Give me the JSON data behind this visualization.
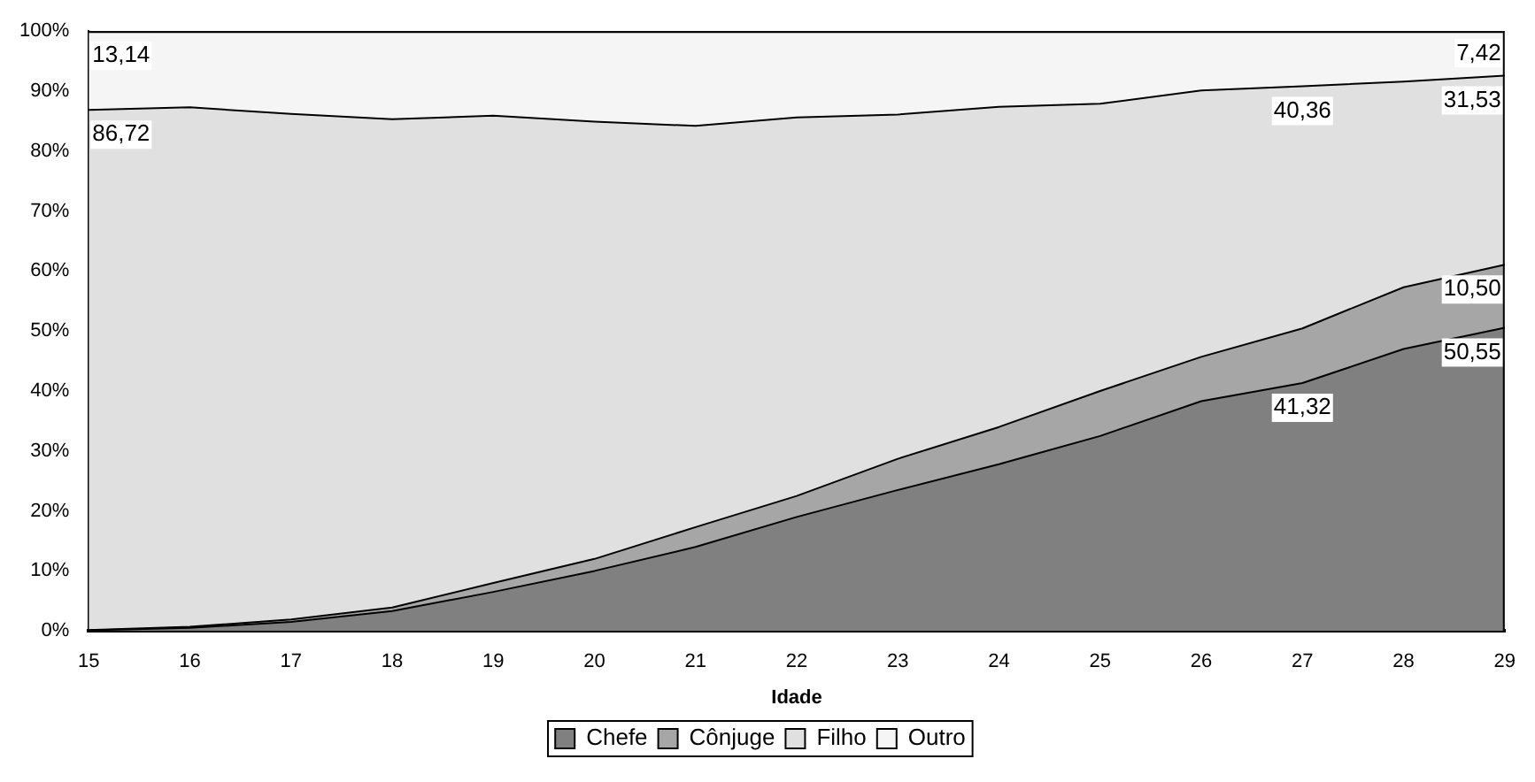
{
  "chart_data": {
    "type": "area",
    "stacked": true,
    "xlabel": "Idade",
    "categories": [
      "15",
      "16",
      "17",
      "18",
      "19",
      "20",
      "21",
      "22",
      "23",
      "24",
      "25",
      "26",
      "27",
      "28",
      "29"
    ],
    "ylim": [
      0,
      100
    ],
    "yticks": [
      {
        "value": 0,
        "label": "0%"
      },
      {
        "value": 10,
        "label": "10%"
      },
      {
        "value": 20,
        "label": "20%"
      },
      {
        "value": 30,
        "label": "30%"
      },
      {
        "value": 40,
        "label": "40%"
      },
      {
        "value": 50,
        "label": "50%"
      },
      {
        "value": 60,
        "label": "60%"
      },
      {
        "value": 70,
        "label": "70%"
      },
      {
        "value": 80,
        "label": "80%"
      },
      {
        "value": 90,
        "label": "90%"
      },
      {
        "value": 100,
        "label": "100%"
      }
    ],
    "grid": false,
    "legend": "bottom",
    "marker": "none",
    "line_style": "solid",
    "series": [
      {
        "name": "Chefe",
        "color": "#808080",
        "values": [
          0.1,
          0.5,
          1.5,
          3.3,
          6.5,
          10,
          14,
          19,
          23.5,
          27.8,
          32.5,
          38.3,
          41.32,
          47,
          50.55
        ],
        "value_labels": [
          null,
          null,
          null,
          null,
          null,
          null,
          null,
          null,
          null,
          null,
          null,
          null,
          "41,32",
          null,
          "50,55"
        ]
      },
      {
        "name": "Cônjuge",
        "color": "#a6a6a6",
        "values": [
          0.04,
          0.2,
          0.4,
          0.6,
          1.5,
          2,
          3.3,
          3.5,
          5.2,
          6.2,
          7.5,
          7.4,
          9.12,
          10.3,
          10.5
        ],
        "value_labels": [
          null,
          null,
          null,
          null,
          null,
          null,
          null,
          null,
          null,
          null,
          null,
          null,
          null,
          null,
          "10,50"
        ]
      },
      {
        "name": "Filho",
        "color": "#e0e0e0",
        "values": [
          86.72,
          86.6,
          84.3,
          81.4,
          77.9,
          72.9,
          66.9,
          63.1,
          57.4,
          53.4,
          47.9,
          44.4,
          40.36,
          34.3,
          31.53
        ],
        "value_labels": [
          "86,72",
          null,
          null,
          null,
          null,
          null,
          null,
          null,
          null,
          null,
          null,
          null,
          "40,36",
          null,
          "31,53"
        ]
      },
      {
        "name": "Outro",
        "color": "#f5f5f5",
        "values": [
          13.14,
          12.7,
          13.8,
          14.7,
          14.1,
          15.1,
          15.8,
          14.4,
          13.9,
          12.6,
          12.1,
          9.9,
          9.2,
          8.4,
          7.42
        ],
        "value_labels": [
          "13,14",
          null,
          null,
          null,
          null,
          null,
          null,
          null,
          null,
          null,
          null,
          null,
          null,
          null,
          "7,42"
        ]
      }
    ]
  }
}
